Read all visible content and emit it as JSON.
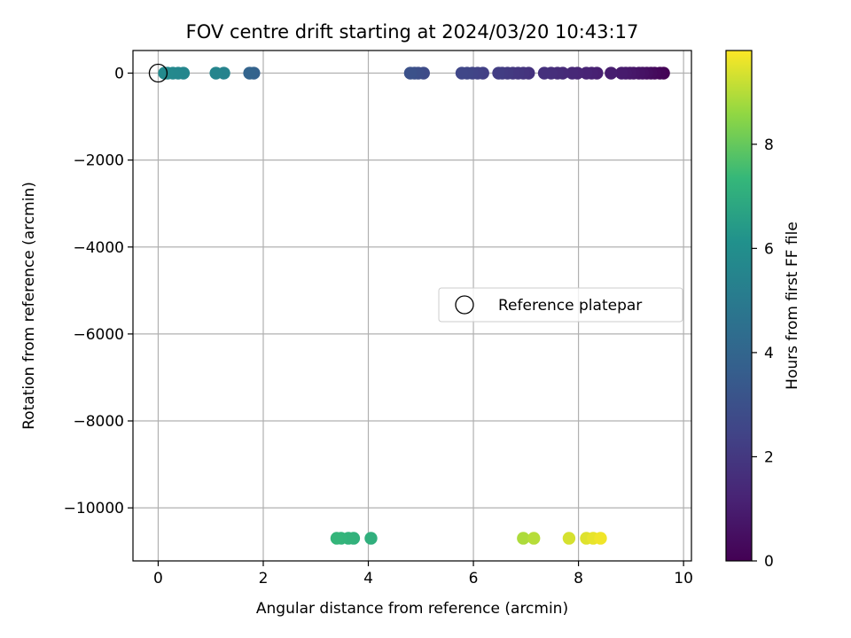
{
  "chart_data": {
    "type": "scatter",
    "title": "FOV centre drift starting at 2024/03/20 10:43:17",
    "xlabel": "Angular distance from reference (arcmin)",
    "ylabel": "Rotation from reference (arcmin)",
    "xlim": [
      -0.48,
      10.15
    ],
    "ylim": [
      -11220,
      520
    ],
    "xticks": [
      0,
      2,
      4,
      6,
      8,
      10
    ],
    "xtick_labels": [
      "0",
      "2",
      "4",
      "6",
      "8",
      "10"
    ],
    "yticks": [
      0,
      -2000,
      -4000,
      -6000,
      -8000,
      -10000
    ],
    "ytick_labels": [
      "0",
      "−2000",
      "−4000",
      "−6000",
      "−8000",
      "−10000"
    ],
    "grid": true,
    "legend": {
      "placement": "center-right",
      "entries": [
        {
          "label": "Reference platepar",
          "marker": "open-circle"
        }
      ]
    },
    "reference_point": {
      "x": 0,
      "y": 0
    },
    "colorbar": {
      "label": "Hours from first FF file",
      "range": [
        0,
        9.8
      ],
      "ticks": [
        0,
        2,
        4,
        6,
        8
      ],
      "tick_labels": [
        "0",
        "2",
        "4",
        "6",
        "8"
      ],
      "colormap": "viridis"
    },
    "series": [
      {
        "points": [
          {
            "x": 9.62,
            "y": 0,
            "c": 0.05
          },
          {
            "x": 9.55,
            "y": 0,
            "c": 0.15
          },
          {
            "x": 9.45,
            "y": 0,
            "c": 0.25
          },
          {
            "x": 9.38,
            "y": 0,
            "c": 0.35
          },
          {
            "x": 9.3,
            "y": 0,
            "c": 0.45
          },
          {
            "x": 9.22,
            "y": 0,
            "c": 0.55
          },
          {
            "x": 9.15,
            "y": 0,
            "c": 0.62
          },
          {
            "x": 9.05,
            "y": 0,
            "c": 0.7
          },
          {
            "x": 8.98,
            "y": 0,
            "c": 0.78
          },
          {
            "x": 8.9,
            "y": 0,
            "c": 0.85
          },
          {
            "x": 8.82,
            "y": 0,
            "c": 0.92
          },
          {
            "x": 8.62,
            "y": 0,
            "c": 1.0
          },
          {
            "x": 8.35,
            "y": 0,
            "c": 1.08
          },
          {
            "x": 8.25,
            "y": 0,
            "c": 1.15
          },
          {
            "x": 8.15,
            "y": 0,
            "c": 1.22
          },
          {
            "x": 7.98,
            "y": 0,
            "c": 1.3
          },
          {
            "x": 7.88,
            "y": 0,
            "c": 1.38
          },
          {
            "x": 7.7,
            "y": 0,
            "c": 1.45
          },
          {
            "x": 7.6,
            "y": 0,
            "c": 1.52
          },
          {
            "x": 7.48,
            "y": 0,
            "c": 1.6
          },
          {
            "x": 7.35,
            "y": 0,
            "c": 1.68
          },
          {
            "x": 7.05,
            "y": 0,
            "c": 1.75
          },
          {
            "x": 6.95,
            "y": 0,
            "c": 1.82
          },
          {
            "x": 6.85,
            "y": 0,
            "c": 1.9
          },
          {
            "x": 6.75,
            "y": 0,
            "c": 1.97
          },
          {
            "x": 6.65,
            "y": 0,
            "c": 2.05
          },
          {
            "x": 6.55,
            "y": 0,
            "c": 2.12
          },
          {
            "x": 6.48,
            "y": 0,
            "c": 2.2
          },
          {
            "x": 6.18,
            "y": 0,
            "c": 2.28
          },
          {
            "x": 6.08,
            "y": 0,
            "c": 2.36
          },
          {
            "x": 5.98,
            "y": 0,
            "c": 2.44
          },
          {
            "x": 5.88,
            "y": 0,
            "c": 2.52
          },
          {
            "x": 5.78,
            "y": 0,
            "c": 2.6
          },
          {
            "x": 5.05,
            "y": 0,
            "c": 2.75
          },
          {
            "x": 4.95,
            "y": 0,
            "c": 2.85
          },
          {
            "x": 4.88,
            "y": 0,
            "c": 2.95
          },
          {
            "x": 4.8,
            "y": 0,
            "c": 3.05
          },
          {
            "x": 1.82,
            "y": 0,
            "c": 3.8
          },
          {
            "x": 1.74,
            "y": 0,
            "c": 3.9
          },
          {
            "x": 1.25,
            "y": 0,
            "c": 5.45
          },
          {
            "x": 1.1,
            "y": 0,
            "c": 5.55
          },
          {
            "x": 0.48,
            "y": 0,
            "c": 5.6
          },
          {
            "x": 0.38,
            "y": 0,
            "c": 5.65
          },
          {
            "x": 0.28,
            "y": 0,
            "c": 5.7
          },
          {
            "x": 0.18,
            "y": 0,
            "c": 5.75
          },
          {
            "x": 0.12,
            "y": 0,
            "c": 5.8
          },
          {
            "x": 4.05,
            "y": -10700,
            "c": 7.1
          },
          {
            "x": 3.72,
            "y": -10700,
            "c": 7.15
          },
          {
            "x": 3.62,
            "y": -10700,
            "c": 7.2
          },
          {
            "x": 3.48,
            "y": -10700,
            "c": 7.25
          },
          {
            "x": 3.4,
            "y": -10700,
            "c": 7.3
          },
          {
            "x": 6.95,
            "y": -10700,
            "c": 8.9
          },
          {
            "x": 7.15,
            "y": -10700,
            "c": 9.0
          },
          {
            "x": 7.82,
            "y": -10700,
            "c": 9.35
          },
          {
            "x": 8.15,
            "y": -10700,
            "c": 9.45
          },
          {
            "x": 8.28,
            "y": -10700,
            "c": 9.55
          },
          {
            "x": 8.42,
            "y": -10700,
            "c": 9.65
          }
        ]
      }
    ]
  }
}
